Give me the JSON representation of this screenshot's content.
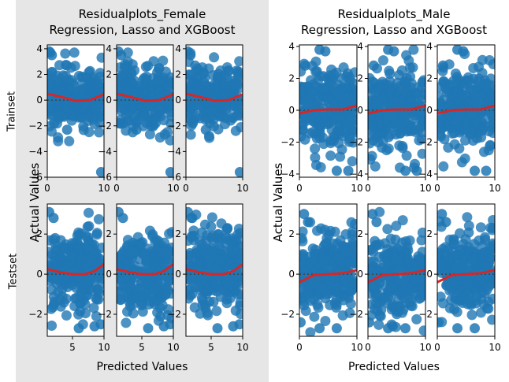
{
  "chart_data": [
    {
      "type": "scatter",
      "title_line1": "Residualplots_Female",
      "title_line2": "Regression, Lasso and XGBoost",
      "xlabel": "Predicted Values",
      "ylabel": "Actual Values",
      "row_labels": [
        "Trainset",
        "Testset"
      ],
      "panel_models": [
        "Regression",
        "Lasso",
        "XGBoost"
      ],
      "background": "#e6e6e6",
      "rows": [
        {
          "name": "Trainset",
          "xlim": [
            0,
            10
          ],
          "ylim": [
            -6,
            4.3
          ],
          "xticks": [
            0,
            10
          ],
          "yticks": [
            4,
            2,
            0,
            -2,
            -4,
            -6
          ],
          "point_cloud": {
            "x_range": [
              0.2,
              9.8
            ],
            "y_range": [
              -3.2,
              3.7
            ]
          },
          "outliers": [
            [
              0.3,
              3.8
            ],
            [
              0.8,
              3.5
            ],
            [
              9.5,
              -5.6
            ],
            [
              1.2,
              -1.8
            ],
            [
              3.5,
              -2.3
            ]
          ],
          "trend_x": [
            0,
            2.5,
            5,
            7.5,
            10
          ],
          "trend_y": [
            0.5,
            0.25,
            -0.05,
            0.0,
            0.45
          ]
        },
        {
          "name": "Testset",
          "xlim": [
            1,
            10
          ],
          "ylim": [
            -3.1,
            3.5
          ],
          "xticks": [
            5,
            10
          ],
          "yticks": [
            2,
            0,
            -2
          ],
          "point_cloud": {
            "x_range": [
              1.2,
              9.8
            ],
            "y_range": [
              -2.9,
              3.3
            ]
          },
          "outliers": [
            [
              1.3,
              3.1
            ],
            [
              2.0,
              2.8
            ],
            [
              6.0,
              -2.7
            ],
            [
              8.5,
              -2.6
            ],
            [
              9.5,
              -2.5
            ]
          ],
          "trend_x": [
            1,
            3,
            5,
            7,
            8.5,
            10
          ],
          "trend_y": [
            0.25,
            0.1,
            0.0,
            0.0,
            0.15,
            0.5
          ]
        }
      ]
    },
    {
      "type": "scatter",
      "title_line1": "Residualplots_Male",
      "title_line2": "Regression, Lasso and XGBoost",
      "xlabel": "Predicted Values",
      "ylabel": "Actual Values",
      "panel_models": [
        "Regression",
        "Lasso",
        "XGBoost"
      ],
      "rows": [
        {
          "name": "Trainset",
          "xlim": [
            0,
            10
          ],
          "ylim": [
            -4.2,
            4.1
          ],
          "xticks": [
            0,
            10
          ],
          "yticks": [
            4,
            2,
            0,
            -2,
            -4
          ],
          "point_cloud": {
            "x_range": [
              0.2,
              9.8
            ],
            "y_range": [
              -3.6,
              3.8
            ]
          },
          "outliers": [
            [
              3.5,
              3.8
            ],
            [
              4.5,
              3.7
            ],
            [
              6.5,
              -3.8
            ],
            [
              8.5,
              -3.8
            ],
            [
              1.0,
              2.8
            ]
          ],
          "trend_x": [
            0,
            2.5,
            5,
            7.5,
            10
          ],
          "trend_y": [
            -0.2,
            0.0,
            0.05,
            0.05,
            0.3
          ]
        },
        {
          "name": "Testset",
          "xlim": [
            0,
            10
          ],
          "ylim": [
            -3.1,
            3.5
          ],
          "xticks": [
            0,
            10
          ],
          "yticks": [
            2,
            0,
            -2
          ],
          "point_cloud": {
            "x_range": [
              0.3,
              9.8
            ],
            "y_range": [
              -2.9,
              3.1
            ]
          },
          "outliers": [
            [
              0.8,
              3.0
            ],
            [
              1.5,
              2.6
            ],
            [
              6.5,
              -2.7
            ],
            [
              3.5,
              -2.7
            ],
            [
              0.2,
              -2.4
            ]
          ],
          "trend_x": [
            0,
            2.5,
            5,
            7.5,
            10
          ],
          "trend_y": [
            -0.4,
            -0.05,
            0.0,
            0.05,
            0.2
          ]
        }
      ]
    }
  ],
  "style": {
    "point_color": "#1f77b4",
    "trend_color": "#d62728",
    "zero_line_color": "#444444"
  }
}
